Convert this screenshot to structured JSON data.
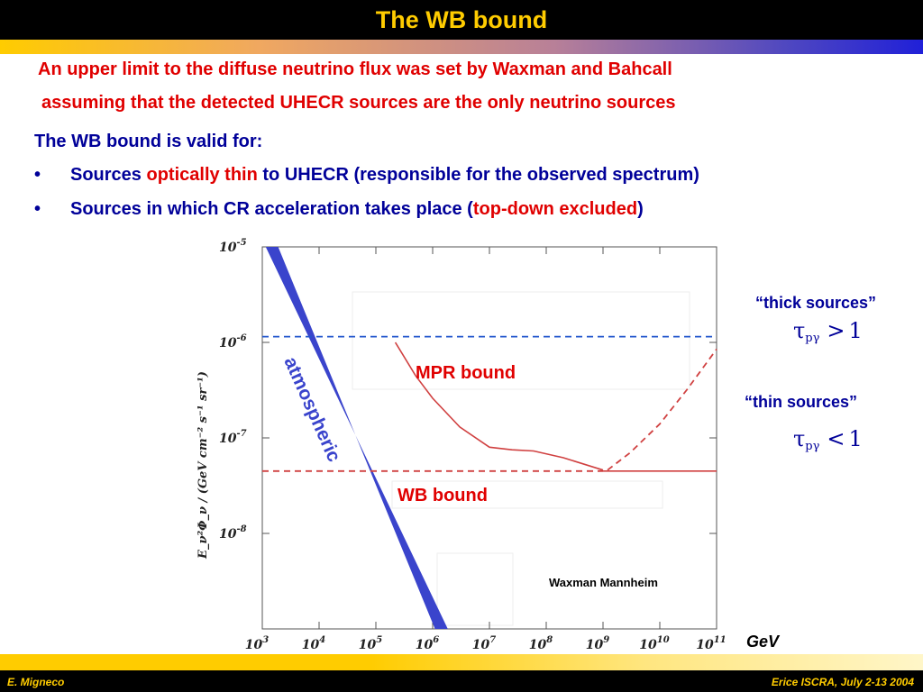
{
  "slide": {
    "title": "The WB bound",
    "intro_line1": "An upper  limit to the diffuse neutrino flux was set by Waxman and Bahcall",
    "intro_line2": "assuming that the detected UHECR sources are the only neutrino sources",
    "valid_for": "The WB bound is valid for:",
    "bullet_symbol": "•",
    "bullets": [
      {
        "pre": "Sources ",
        "highlight": "optically thin",
        "post": " to UHECR (responsible for the observed  spectrum)"
      },
      {
        "pre": "Sources in which CR acceleration takes place (",
        "highlight": "top-down excluded",
        "post": ")"
      }
    ]
  },
  "side_labels": {
    "thick": "“thick sources”",
    "thin": "“thin sources”",
    "tau_symbol": "τ",
    "tau_subscript": "pγ",
    "thick_relation": ">",
    "thin_relation": "<",
    "threshold": "1"
  },
  "gev_label": "GeV",
  "footer": {
    "left": "E. Migneco",
    "right": "Erice ISCRA, July 2-13  2004"
  },
  "colors": {
    "title_bg": "#000000",
    "title_text": "#ffcc00",
    "red": "#e00000",
    "blue": "#000099",
    "band": "#3a44cc"
  },
  "chart_data": {
    "type": "line",
    "log_x": true,
    "log_y": true,
    "xlim": [
      1000,
      100000000000
    ],
    "ylim": [
      1e-09,
      1e-05
    ],
    "ylabel": "E_ν²Φ_ν / (GeV cm⁻² s⁻¹ sr⁻¹)",
    "x_ticks": [
      {
        "base": "10",
        "exp": "3",
        "value": 1000.0
      },
      {
        "base": "10",
        "exp": "4",
        "value": 10000.0
      },
      {
        "base": "10",
        "exp": "5",
        "value": 100000.0
      },
      {
        "base": "10",
        "exp": "6",
        "value": 1000000.0
      },
      {
        "base": "10",
        "exp": "7",
        "value": 10000000.0
      },
      {
        "base": "10",
        "exp": "8",
        "value": 100000000.0
      },
      {
        "base": "10",
        "exp": "9",
        "value": 1000000000.0
      },
      {
        "base": "10",
        "exp": "10",
        "value": 10000000000.0
      },
      {
        "base": "10",
        "exp": "11",
        "value": 100000000000.0
      }
    ],
    "y_ticks": [
      {
        "base": "10",
        "exp": "-5",
        "value": 1e-05
      },
      {
        "base": "10",
        "exp": "-6",
        "value": 1e-06
      },
      {
        "base": "10",
        "exp": "-7",
        "value": 1e-07
      },
      {
        "base": "10",
        "exp": "-8",
        "value": 1e-08
      }
    ],
    "series": [
      {
        "key": "mpr",
        "name": "MPR bound",
        "style": "solid",
        "color": "#d04040",
        "points": [
          [
            220000.0,
            1e-06
          ],
          [
            500000.0,
            4.5e-07
          ],
          [
            1000000.0,
            2.6e-07
          ],
          [
            3000000.0,
            1.3e-07
          ],
          [
            10000000.0,
            8e-08
          ],
          [
            25000000.0,
            7.5e-08
          ],
          [
            60000000.0,
            7.3e-08
          ],
          [
            200000000.0,
            6.2e-08
          ],
          [
            1000000000.0,
            4.6e-08
          ]
        ]
      },
      {
        "key": "mpr_dashed",
        "style": "dashed",
        "color": "#d04040",
        "points": [
          [
            1200000000.0,
            4.6e-08
          ],
          [
            3000000000.0,
            7e-08
          ],
          [
            10000000000.0,
            1.4e-07
          ],
          [
            30000000000.0,
            3.2e-07
          ],
          [
            100000000000.0,
            8.5e-07
          ]
        ]
      },
      {
        "key": "wb",
        "name": "WB bound",
        "style": "solid",
        "color": "#d04040",
        "points": [
          [
            1000000000.0,
            4.5e-08
          ],
          [
            100000000000.0,
            4.5e-08
          ]
        ]
      },
      {
        "key": "wb_dashed",
        "style": "dashed",
        "color": "#d04040",
        "points": [
          [
            1000.0,
            4.5e-08
          ],
          [
            1000000000.0,
            4.5e-08
          ]
        ]
      },
      {
        "key": "upper_dashed",
        "style": "dashed",
        "color": "#2255cc",
        "points": [
          [
            1000.0,
            1.15e-06
          ],
          [
            100000000000.0,
            1.15e-06
          ]
        ]
      }
    ],
    "atmospheric_band": {
      "name": "atmospheric",
      "upper": [
        [
          1150.0,
          1e-05
        ],
        [
          1850000.0,
          1e-09
        ]
      ],
      "lower": [
        [
          1900.0,
          1e-05
        ],
        [
          1100000.0,
          1e-09
        ]
      ],
      "color": "#3a44cc"
    },
    "annotations": {
      "mpr_label": "MPR bound",
      "wb_label": "WB bound",
      "atmospheric_label": "atmospheric",
      "source_label": "Waxman Mannheim"
    }
  }
}
